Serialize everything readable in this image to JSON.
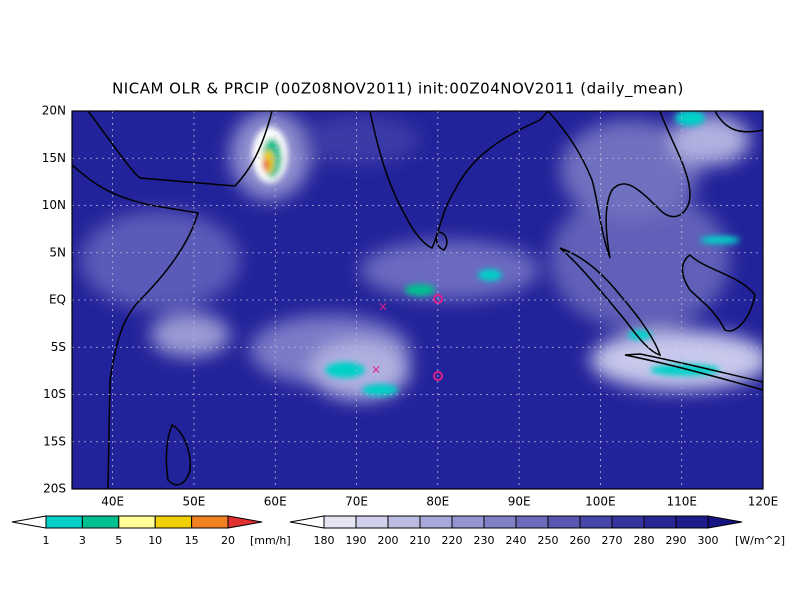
{
  "title": "NICAM OLR & PRCIP (00Z08NOV2011) init:00Z04NOV2011 (daily_mean)",
  "map": {
    "lat_labels": [
      "20N",
      "15N",
      "10N",
      "5N",
      "EQ",
      "5S",
      "10S",
      "15S",
      "20S"
    ],
    "lon_labels": [
      "40E",
      "50E",
      "60E",
      "70E",
      "80E",
      "90E",
      "100E",
      "110E",
      "120E"
    ]
  },
  "precip_colorbar": {
    "labels": [
      "1",
      "3",
      "5",
      "10",
      "15",
      "20"
    ],
    "unit": "[mm/h]",
    "colors": [
      "#ffffff",
      "#00d0c8",
      "#00c090",
      "#ffff99",
      "#f0d000",
      "#f08020",
      "#e03030"
    ]
  },
  "olr_colorbar": {
    "labels": [
      "180",
      "190",
      "200",
      "210",
      "220",
      "230",
      "240",
      "250",
      "260",
      "270",
      "280",
      "290",
      "300"
    ],
    "unit": "[W/m^2]",
    "colors": [
      "#ffffff",
      "#e6e6f2",
      "#d0d0ea",
      "#bcbce2",
      "#a8a8da",
      "#9494d0",
      "#8080c6",
      "#6c6cbc",
      "#5858b2",
      "#4646a8",
      "#34349e",
      "#262694",
      "#1c1c8a",
      "#141482"
    ]
  }
}
